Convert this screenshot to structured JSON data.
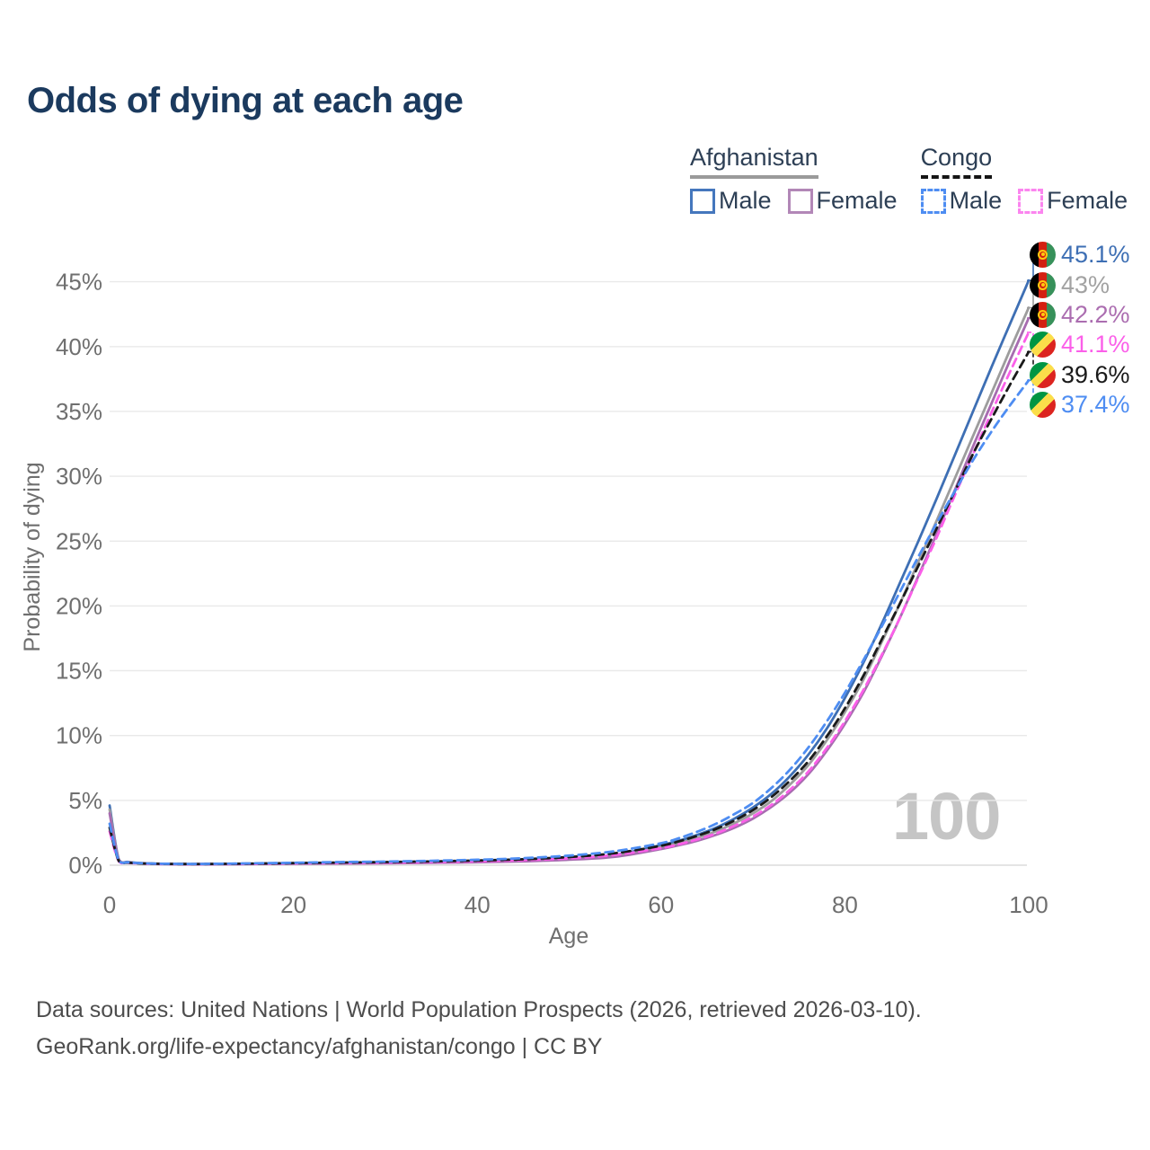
{
  "title": "Odds of dying at each age",
  "watermark": "100",
  "legend": {
    "groups": [
      {
        "name": "Afghanistan",
        "line": {
          "style": "solid",
          "color": "#9a9a9a"
        },
        "items": [
          {
            "label": "Male",
            "color": "#4577bd",
            "box_style": "solid"
          },
          {
            "label": "Female",
            "color": "#b287b7",
            "box_style": "solid"
          }
        ]
      },
      {
        "name": "Congo",
        "line": {
          "style": "dashed",
          "color": "#141414"
        },
        "items": [
          {
            "label": "Male",
            "color": "#4e8df2",
            "box_style": "dashed"
          },
          {
            "label": "Female",
            "color": "#fb85ef",
            "box_style": "dashed"
          }
        ]
      }
    ]
  },
  "end_labels": [
    {
      "value_label": "45.1%",
      "flag": "afghanistan",
      "color": "#3e6fb4"
    },
    {
      "value_label": "43%",
      "flag": "afghanistan",
      "color": "#a2a2a2"
    },
    {
      "value_label": "42.2%",
      "flag": "afghanistan",
      "color": "#ab6db0"
    },
    {
      "value_label": "41.1%",
      "flag": "congo",
      "color": "#fb5fe9"
    },
    {
      "value_label": "39.6%",
      "flag": "congo",
      "color": "#1a1a1a"
    },
    {
      "value_label": "37.4%",
      "flag": "congo",
      "color": "#4e8df2"
    }
  ],
  "footer": {
    "line1": "Data sources: United Nations | World Population Prospects (2026, retrieved 2026-03-10).",
    "line2": "GeoRank.org/life-expectancy/afghanistan/congo | CC BY"
  },
  "chart_data": {
    "type": "line",
    "title": "Odds of dying at each age",
    "xlabel": "Age",
    "ylabel": "Probability of dying",
    "xlim": [
      0,
      100
    ],
    "ylim": [
      0,
      45
    ],
    "grid": "horizontal",
    "legend_position": "top-right",
    "x_ticks": [
      0,
      20,
      40,
      60,
      80,
      100
    ],
    "y_ticks": [
      "0%",
      "5%",
      "10%",
      "15%",
      "20%",
      "25%",
      "30%",
      "35%",
      "40%",
      "45%"
    ],
    "y_tick_values": [
      0,
      5,
      10,
      15,
      20,
      25,
      30,
      35,
      40,
      45
    ],
    "x": [
      0,
      1,
      2,
      3,
      5,
      8,
      10,
      15,
      20,
      25,
      30,
      35,
      40,
      45,
      50,
      55,
      60,
      62,
      64,
      66,
      68,
      70,
      72,
      74,
      76,
      78,
      80,
      82,
      84,
      86,
      88,
      90,
      92,
      94,
      96,
      98,
      100
    ],
    "series": [
      {
        "id": "afghanistan-male",
        "name": "Afghanistan Male",
        "color": "#3e6fb4",
        "dash": null,
        "end_label": "45.1%",
        "values": [
          4.6,
          0.45,
          0.25,
          0.18,
          0.12,
          0.09,
          0.09,
          0.11,
          0.15,
          0.17,
          0.19,
          0.23,
          0.28,
          0.36,
          0.5,
          0.8,
          1.55,
          1.9,
          2.35,
          2.9,
          3.6,
          4.45,
          5.5,
          6.85,
          8.5,
          10.5,
          12.9,
          15.6,
          18.6,
          21.8,
          25.0,
          28.3,
          31.7,
          35.1,
          38.5,
          41.8,
          45.1
        ]
      },
      {
        "id": "afghanistan-both",
        "name": "Afghanistan",
        "color": "#9d9d9d",
        "dash": null,
        "end_label": "43%",
        "values": [
          4.3,
          0.42,
          0.23,
          0.17,
          0.11,
          0.08,
          0.08,
          0.1,
          0.13,
          0.15,
          0.17,
          0.21,
          0.26,
          0.33,
          0.46,
          0.72,
          1.4,
          1.72,
          2.12,
          2.62,
          3.25,
          4.0,
          4.95,
          6.2,
          7.7,
          9.6,
          11.8,
          14.3,
          17.2,
          20.2,
          23.4,
          26.6,
          29.9,
          33.2,
          36.5,
          39.8,
          43.0
        ]
      },
      {
        "id": "afghanistan-female",
        "name": "Afghanistan Female",
        "color": "#a76cb0",
        "dash": null,
        "end_label": "42.2%",
        "values": [
          4.0,
          0.4,
          0.22,
          0.16,
          0.1,
          0.07,
          0.07,
          0.09,
          0.12,
          0.13,
          0.15,
          0.18,
          0.23,
          0.3,
          0.42,
          0.65,
          1.25,
          1.55,
          1.9,
          2.35,
          2.9,
          3.6,
          4.5,
          5.6,
          7.0,
          8.8,
          10.9,
          13.3,
          16.1,
          19.1,
          22.3,
          25.6,
          29.0,
          32.4,
          35.7,
          39.0,
          42.2
        ]
      },
      {
        "id": "congo-female",
        "name": "Congo Female",
        "color": "#fb5fe9",
        "dash": "9 6",
        "end_label": "41.1%",
        "values": [
          2.6,
          0.3,
          0.18,
          0.14,
          0.1,
          0.08,
          0.08,
          0.1,
          0.14,
          0.17,
          0.2,
          0.24,
          0.3,
          0.39,
          0.53,
          0.8,
          1.32,
          1.62,
          2.0,
          2.45,
          3.05,
          3.75,
          4.65,
          5.8,
          7.2,
          9.0,
          11.1,
          13.5,
          16.2,
          19.1,
          22.2,
          25.3,
          28.6,
          31.8,
          35.0,
          38.1,
          41.1
        ]
      },
      {
        "id": "congo-both",
        "name": "Congo",
        "color": "#1a1a1a",
        "dash": "9 6",
        "end_label": "39.6%",
        "values": [
          2.9,
          0.33,
          0.2,
          0.15,
          0.11,
          0.09,
          0.09,
          0.12,
          0.16,
          0.2,
          0.24,
          0.29,
          0.36,
          0.46,
          0.63,
          0.93,
          1.5,
          1.85,
          2.28,
          2.8,
          3.45,
          4.25,
          5.25,
          6.5,
          8.0,
          9.9,
          12.1,
          14.6,
          17.4,
          20.2,
          23.1,
          26.0,
          28.9,
          31.8,
          34.5,
          37.1,
          39.6
        ]
      },
      {
        "id": "congo-male",
        "name": "Congo Male",
        "color": "#4e8df2",
        "dash": "9 6",
        "end_label": "37.4%",
        "values": [
          3.2,
          0.36,
          0.22,
          0.17,
          0.12,
          0.1,
          0.1,
          0.14,
          0.19,
          0.24,
          0.28,
          0.34,
          0.42,
          0.54,
          0.74,
          1.08,
          1.7,
          2.1,
          2.6,
          3.2,
          3.95,
          4.8,
          5.95,
          7.35,
          9.05,
          11.05,
          13.3,
          15.8,
          18.4,
          21.1,
          23.8,
          26.4,
          28.9,
          31.3,
          33.5,
          35.5,
          37.4
        ]
      }
    ]
  }
}
